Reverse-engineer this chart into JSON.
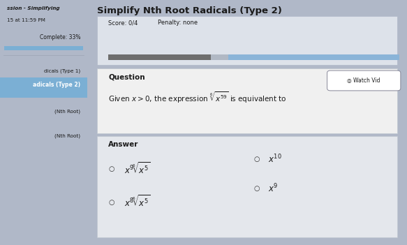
{
  "title": "Simplify Nth Root Radicals (Type 2)",
  "score_text": "Score: 0/4",
  "penalty_text": "Penalty: none",
  "sidebar_items": [
    "ssion - Simplifying",
    "15 at 11:59 PM",
    "Complete: 33%",
    "dicals (Type 1)",
    "adicals (Type 2)",
    "(Nth Root)",
    "(Nth Root)"
  ],
  "question_label": "Question",
  "answer_label": "Answer",
  "watch_vid_text": "Watch Vid",
  "bg_outer": "#b0b8c8",
  "sidebar_bg": "#c5ccd8",
  "main_bg": "#c8ceda",
  "score_card_bg": "#dde2ea",
  "question_card_bg": "#f0f0f0",
  "answer_card_bg": "#e4e7ec",
  "sidebar_highlight_bg": "#7bafd4",
  "progress_bar1_color": "#6e6e6e",
  "progress_bar2_color": "#8ab4d8",
  "progress_bar_bg": "#b0b8c4",
  "text_dark": "#1a1a1a",
  "text_mid": "#333333",
  "sidebar_divider": "#a0a8b8"
}
